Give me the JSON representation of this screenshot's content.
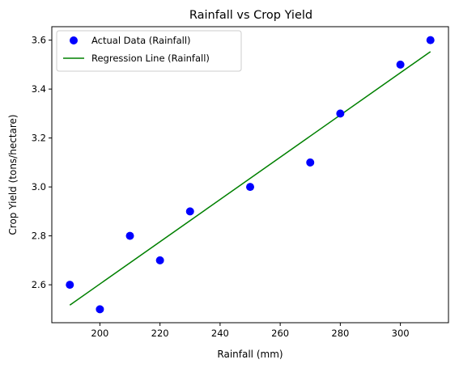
{
  "chart_data": {
    "type": "scatter",
    "title": "Rainfall vs Crop Yield",
    "xlabel": "Rainfall (mm)",
    "ylabel": "Crop Yield (tons/hectare)",
    "xlim": [
      184,
      316
    ],
    "ylim": [
      2.445,
      3.655
    ],
    "xticks": [
      200,
      220,
      240,
      260,
      280,
      300
    ],
    "yticks": [
      2.6,
      2.8,
      3.0,
      3.2,
      3.4,
      3.6
    ],
    "ytick_labels": [
      "2.6",
      "2.8",
      "3.0",
      "3.2",
      "3.4",
      "3.6"
    ],
    "grid": false,
    "legend_position": "top-left",
    "series": [
      {
        "name": "Actual Data (Rainfall)",
        "kind": "scatter",
        "color": "#0000ff",
        "x": [
          190,
          200,
          210,
          220,
          230,
          250,
          270,
          280,
          300,
          310
        ],
        "y": [
          2.6,
          2.5,
          2.8,
          2.7,
          2.9,
          3.0,
          3.1,
          3.3,
          3.5,
          3.6
        ]
      },
      {
        "name": "Regression Line (Rainfall)",
        "kind": "line",
        "color": "#008000",
        "x": [
          190,
          310
        ],
        "y": [
          2.517,
          3.553
        ]
      }
    ]
  }
}
